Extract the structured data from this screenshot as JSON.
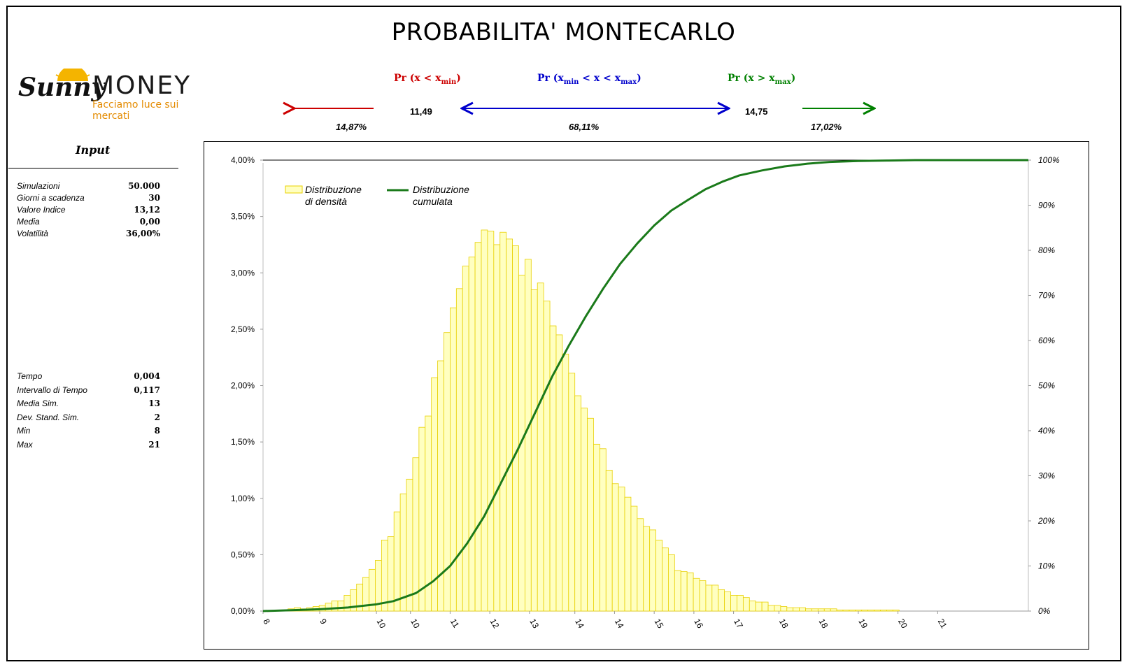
{
  "page": {
    "title": "PROBABILITA' MONTECARLO"
  },
  "logo": {
    "brand_left": "Sunny",
    "brand_right": "MONEY",
    "tagline": "Facciamo luce sui mercati"
  },
  "probabilities": {
    "left": {
      "label_prefix": "Pr (x < x",
      "label_sub": "min",
      "label_suffix": ")",
      "value": "14,87%",
      "color": "#cc0000"
    },
    "middle": {
      "label_prefix": "Pr (x",
      "label_sub1": "min",
      "label_mid": " < x < x",
      "label_sub2": "max",
      "label_suffix": ")",
      "value": "68,11%",
      "color": "#0000cc"
    },
    "right": {
      "label_prefix": "Pr (x > x",
      "label_sub": "max",
      "label_suffix": ")",
      "value": "17,02%",
      "color": "#008000"
    },
    "xmin": "11,49",
    "xmax": "14,75"
  },
  "input": {
    "title": "Input",
    "group1": [
      {
        "label": "Simulazioni",
        "value": "50.000"
      },
      {
        "label": "Giorni a scadenza",
        "value": "30"
      },
      {
        "label": "Valore Indice",
        "value": "13,12"
      },
      {
        "label": "Media",
        "value": "0,00"
      },
      {
        "label": "Volatilità",
        "value": "36,00%"
      }
    ],
    "group2": [
      {
        "label": "Tempo",
        "value": "0,004"
      },
      {
        "label": "Intervallo di Tempo",
        "value": "0,117"
      },
      {
        "label": "Media Sim.",
        "value": "13"
      },
      {
        "label": "Dev. Stand. Sim.",
        "value": "2"
      },
      {
        "label": "Min",
        "value": "8"
      },
      {
        "label": "Max",
        "value": "21"
      }
    ]
  },
  "chart_data": {
    "type": "bar",
    "x_range": [
      8,
      21.5
    ],
    "x_ticks": [
      "8",
      "9",
      "10",
      "10",
      "11",
      "12",
      "13",
      "14",
      "14",
      "15",
      "16",
      "17",
      "18",
      "18",
      "19",
      "20",
      "21"
    ],
    "x_tick_values": [
      8,
      9,
      10,
      10.6,
      11.3,
      12,
      12.7,
      13.5,
      14.2,
      14.9,
      15.6,
      16.3,
      17.1,
      17.8,
      18.5,
      19.2,
      19.9
    ],
    "y_left": {
      "range": [
        0,
        0.04
      ],
      "ticks": [
        "0,00%",
        "0,50%",
        "1,00%",
        "1,50%",
        "2,00%",
        "2,50%",
        "3,00%",
        "3,50%",
        "4,00%"
      ]
    },
    "y_right": {
      "range": [
        0,
        1
      ],
      "ticks": [
        "0%",
        "10%",
        "20%",
        "30%",
        "40%",
        "50%",
        "60%",
        "70%",
        "80%",
        "90%",
        "100%"
      ]
    },
    "legend": [
      {
        "name": "Distribuzione\ndi densità",
        "line1": "Distribuzione",
        "line2": "di densità",
        "kind": "bar"
      },
      {
        "name": "Distribuzione\ncumulata",
        "line1": "Distribuzione",
        "line2": "cumulata",
        "kind": "line"
      }
    ],
    "legend_position": "top-left",
    "colors": {
      "bar_fill": "#ffffc0",
      "bar_stroke": "#e8d000",
      "line": "#1a7a1a"
    },
    "bins_start": 8,
    "bin_width": 0.11,
    "density": [
      0.0,
      0.0,
      0.0001,
      0.0001,
      0.0002,
      0.0003,
      0.0002,
      0.0003,
      0.0004,
      0.0005,
      0.0007,
      0.0009,
      0.0009,
      0.0014,
      0.0019,
      0.0024,
      0.003,
      0.0037,
      0.0045,
      0.0063,
      0.0066,
      0.0088,
      0.0104,
      0.0117,
      0.0136,
      0.0163,
      0.0173,
      0.0207,
      0.0222,
      0.0247,
      0.0269,
      0.0286,
      0.0306,
      0.0314,
      0.0327,
      0.0338,
      0.0337,
      0.0325,
      0.0336,
      0.033,
      0.0324,
      0.0298,
      0.0312,
      0.0285,
      0.0291,
      0.0275,
      0.0253,
      0.0245,
      0.0228,
      0.0211,
      0.0191,
      0.018,
      0.0171,
      0.0148,
      0.0144,
      0.0125,
      0.0113,
      0.011,
      0.0101,
      0.0093,
      0.0082,
      0.0075,
      0.0072,
      0.0063,
      0.0056,
      0.005,
      0.0036,
      0.0035,
      0.0034,
      0.0029,
      0.0027,
      0.0023,
      0.0023,
      0.0019,
      0.0017,
      0.0014,
      0.0014,
      0.0012,
      0.0009,
      0.0008,
      0.0008,
      0.0005,
      0.0005,
      0.0004,
      0.0003,
      0.0003,
      0.0003,
      0.0002,
      0.0002,
      0.0002,
      0.0002,
      0.0002,
      0.0001,
      0.0001,
      0.0001,
      0.0001,
      0.0001,
      0.0001,
      0.0001,
      0.0001,
      0.0001,
      0.0001
    ],
    "cumulative": [
      [
        8.0,
        0.0
      ],
      [
        8.5,
        0.002
      ],
      [
        9.0,
        0.004
      ],
      [
        9.5,
        0.008
      ],
      [
        10.0,
        0.015
      ],
      [
        10.3,
        0.022
      ],
      [
        10.7,
        0.04
      ],
      [
        11.0,
        0.066
      ],
      [
        11.3,
        0.1
      ],
      [
        11.6,
        0.15
      ],
      [
        11.9,
        0.21
      ],
      [
        12.2,
        0.285
      ],
      [
        12.5,
        0.36
      ],
      [
        12.8,
        0.44
      ],
      [
        13.1,
        0.52
      ],
      [
        13.4,
        0.59
      ],
      [
        13.7,
        0.655
      ],
      [
        14.0,
        0.715
      ],
      [
        14.3,
        0.77
      ],
      [
        14.6,
        0.815
      ],
      [
        14.9,
        0.855
      ],
      [
        15.2,
        0.888
      ],
      [
        15.5,
        0.912
      ],
      [
        15.8,
        0.935
      ],
      [
        16.1,
        0.952
      ],
      [
        16.4,
        0.966
      ],
      [
        16.8,
        0.977
      ],
      [
        17.2,
        0.986
      ],
      [
        17.6,
        0.992
      ],
      [
        18.0,
        0.996
      ],
      [
        18.5,
        0.998
      ],
      [
        19.0,
        0.999
      ],
      [
        19.5,
        1.0
      ],
      [
        21.5,
        1.0
      ]
    ]
  }
}
